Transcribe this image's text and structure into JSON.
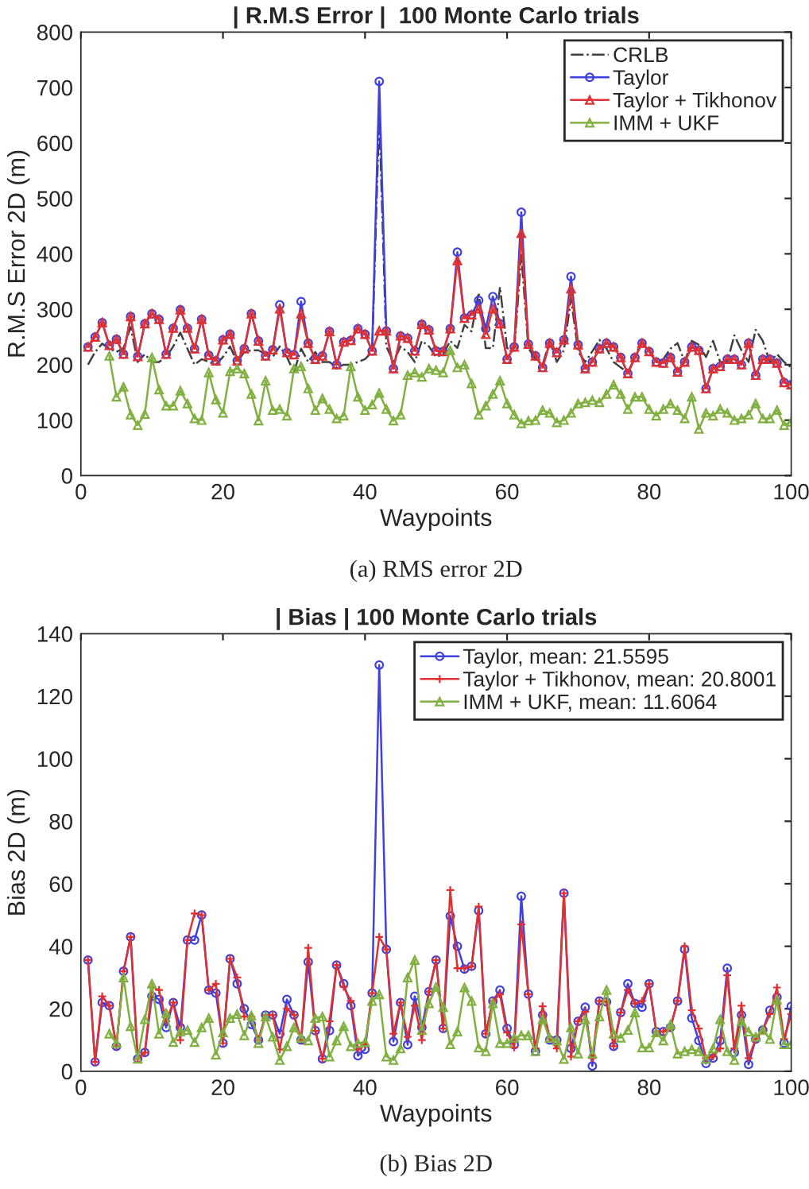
{
  "chart_data": [
    {
      "type": "line",
      "title": "| R.M.S Error |  100 Monte Carlo trials",
      "xlabel": "Waypoints",
      "ylabel": "R.M.S Error 2D (m)",
      "annotations": [
        "(a) RMS error 2D"
      ],
      "x": [
        1,
        2,
        3,
        4,
        5,
        6,
        7,
        8,
        9,
        10,
        11,
        12,
        13,
        14,
        15,
        16,
        17,
        18,
        19,
        20,
        21,
        22,
        23,
        24,
        25,
        26,
        27,
        28,
        29,
        30,
        31,
        32,
        33,
        34,
        35,
        36,
        37,
        38,
        39,
        40,
        41,
        42,
        43,
        44,
        45,
        46,
        47,
        48,
        49,
        50,
        51,
        52,
        53,
        54,
        55,
        56,
        57,
        58,
        59,
        60,
        61,
        62,
        63,
        64,
        65,
        66,
        67,
        68,
        69,
        70,
        71,
        72,
        73,
        74,
        75,
        76,
        77,
        78,
        79,
        80,
        81,
        82,
        83,
        84,
        85,
        86,
        87,
        88,
        89,
        90,
        91,
        92,
        93,
        94,
        95,
        96,
        97,
        98,
        99,
        100
      ],
      "xlim": [
        0,
        100
      ],
      "xticks": [
        0,
        20,
        40,
        60,
        80,
        100
      ],
      "ylim": [
        0,
        800
      ],
      "yticks": [
        0,
        100,
        200,
        300,
        400,
        500,
        600,
        700,
        800
      ],
      "legend": "top right",
      "grid": false,
      "series": [
        {
          "name": "CRLB",
          "color": "#404040",
          "marker": "none",
          "line_style": "dashdot",
          "values": [
            200,
            223,
            238,
            229,
            223,
            230,
            268,
            205,
            219,
            205,
            205,
            214,
            233,
            258,
            229,
            200,
            210,
            205,
            200,
            214,
            233,
            205,
            223,
            226,
            226,
            219,
            214,
            233,
            214,
            186,
            229,
            205,
            223,
            205,
            205,
            195,
            200,
            200,
            205,
            210,
            223,
            650,
            233,
            205,
            233,
            223,
            205,
            243,
            233,
            214,
            219,
            243,
            230,
            272,
            260,
            330,
            230,
            230,
            340,
            230,
            224,
            398,
            230,
            210,
            200,
            243,
            205,
            226,
            320,
            224,
            205,
            224,
            245,
            229,
            205,
            195,
            186,
            213,
            245,
            224,
            205,
            210,
            229,
            239,
            205,
            243,
            236,
            214,
            243,
            205,
            205,
            253,
            226,
            205,
            263,
            243,
            205,
            219,
            205,
            195
          ]
        },
        {
          "name": "Taylor",
          "color": "#4040e0",
          "marker": "circle",
          "line_style": "solid",
          "values": [
            232,
            250,
            276,
            235,
            246,
            219,
            287,
            215,
            274,
            292,
            282,
            219,
            266,
            299,
            266,
            229,
            282,
            217,
            207,
            245,
            255,
            207,
            229,
            292,
            243,
            216,
            227,
            308,
            222,
            218,
            314,
            239,
            210,
            216,
            260,
            200,
            241,
            244,
            265,
            255,
            225,
            711,
            261,
            193,
            252,
            248,
            225,
            273,
            263,
            225,
            224,
            265,
            403,
            284,
            290,
            316,
            265,
            323,
            274,
            210,
            232,
            475,
            237,
            216,
            195,
            239,
            222,
            245,
            359,
            236,
            193,
            205,
            229,
            239,
            232,
            213,
            184,
            213,
            239,
            224,
            205,
            203,
            213,
            187,
            205,
            232,
            226,
            157,
            193,
            197,
            210,
            210,
            200,
            239,
            181,
            210,
            210,
            203,
            168,
            164
          ]
        },
        {
          "name": "Taylor + Tikhonov",
          "color": "#e03030",
          "marker": "triangle",
          "line_style": "solid",
          "values": [
            232,
            250,
            276,
            235,
            246,
            219,
            287,
            215,
            274,
            292,
            282,
            219,
            266,
            299,
            266,
            229,
            282,
            217,
            207,
            245,
            255,
            207,
            229,
            292,
            243,
            216,
            227,
            301,
            222,
            218,
            292,
            239,
            210,
            216,
            260,
            200,
            241,
            244,
            265,
            255,
            225,
            261,
            261,
            193,
            252,
            248,
            225,
            273,
            263,
            225,
            224,
            265,
            388,
            284,
            290,
            301,
            255,
            301,
            274,
            210,
            232,
            437,
            237,
            216,
            195,
            239,
            222,
            245,
            337,
            236,
            193,
            205,
            229,
            239,
            232,
            213,
            184,
            213,
            239,
            224,
            205,
            203,
            213,
            187,
            205,
            232,
            226,
            157,
            193,
            197,
            210,
            210,
            200,
            239,
            181,
            210,
            210,
            203,
            168,
            164
          ]
        },
        {
          "name": "IMM + UKF",
          "color": "#80b040",
          "marker": "triangle",
          "line_style": "solid",
          "values": [
            null,
            null,
            null,
            216,
            142,
            160,
            110,
            91,
            111,
            213,
            155,
            126,
            126,
            153,
            130,
            103,
            100,
            186,
            137,
            113,
            188,
            193,
            184,
            147,
            99,
            171,
            118,
            120,
            108,
            193,
            197,
            157,
            118,
            139,
            120,
            103,
            108,
            197,
            142,
            118,
            128,
            149,
            120,
            99,
            110,
            181,
            186,
            178,
            193,
            190,
            186,
            226,
            195,
            200,
            166,
            110,
            126,
            147,
            171,
            130,
            110,
            94,
            99,
            100,
            118,
            113,
            96,
            100,
            113,
            130,
            132,
            136,
            132,
            147,
            164,
            147,
            120,
            142,
            142,
            120,
            108,
            120,
            130,
            118,
            103,
            142,
            84,
            113,
            108,
            120,
            113,
            100,
            103,
            110,
            130,
            103,
            103,
            118,
            91,
            97
          ]
        }
      ]
    },
    {
      "type": "line",
      "title": "| Bias | 100 Monte Carlo trials",
      "xlabel": "Waypoints",
      "ylabel": "Bias 2D (m)",
      "annotations": [
        "(b) Bias 2D"
      ],
      "x": [
        1,
        2,
        3,
        4,
        5,
        6,
        7,
        8,
        9,
        10,
        11,
        12,
        13,
        14,
        15,
        16,
        17,
        18,
        19,
        20,
        21,
        22,
        23,
        24,
        25,
        26,
        27,
        28,
        29,
        30,
        31,
        32,
        33,
        34,
        35,
        36,
        37,
        38,
        39,
        40,
        41,
        42,
        43,
        44,
        45,
        46,
        47,
        48,
        49,
        50,
        51,
        52,
        53,
        54,
        55,
        56,
        57,
        58,
        59,
        60,
        61,
        62,
        63,
        64,
        65,
        66,
        67,
        68,
        69,
        70,
        71,
        72,
        73,
        74,
        75,
        76,
        77,
        78,
        79,
        80,
        81,
        82,
        83,
        84,
        85,
        86,
        87,
        88,
        89,
        90,
        91,
        92,
        93,
        94,
        95,
        96,
        97,
        98,
        99,
        100
      ],
      "xlim": [
        0,
        100
      ],
      "xticks": [
        0,
        20,
        40,
        60,
        80,
        100
      ],
      "ylim": [
        0,
        140
      ],
      "yticks": [
        0,
        20,
        40,
        60,
        80,
        100,
        120,
        140
      ],
      "legend": "top right",
      "grid": false,
      "series": [
        {
          "name": "Taylor, mean: 21.5595",
          "color": "#4040e0",
          "marker": "circle",
          "line_style": "solid",
          "values": [
            35.6,
            3,
            22,
            21,
            8,
            32,
            43,
            4,
            6,
            24,
            23,
            14,
            22,
            14,
            42,
            42,
            50,
            26,
            25,
            9,
            36,
            28,
            20,
            15,
            10,
            18,
            18,
            12,
            23,
            18,
            10,
            35,
            13,
            4,
            13,
            34,
            28,
            21,
            5,
            7,
            25,
            130,
            39,
            9.5,
            22,
            8.5,
            24,
            14,
            25.5,
            35.6,
            13.7,
            49.7,
            40,
            32.7,
            33.6,
            51.4,
            12,
            22.5,
            26,
            13.7,
            8.5,
            56,
            24.7,
            6.4,
            18,
            10,
            10,
            57,
            7.3,
            16,
            20.5,
            1.7,
            22.5,
            22.2,
            8,
            18.8,
            28,
            21.7,
            20.5,
            28,
            12.7,
            12.7,
            14,
            22.5,
            39,
            17,
            9.8,
            2.5,
            4.2,
            9.8,
            33,
            6,
            18,
            2.2,
            10.3,
            13.2,
            19.5,
            23.7,
            9,
            20.8
          ]
        },
        {
          "name": "Taylor + Tikhonov, mean: 20.8001",
          "color": "#e03030",
          "marker": "cross",
          "line_style": "solid",
          "values": [
            35.6,
            3,
            24,
            21,
            8,
            32,
            43,
            4,
            6,
            27,
            26,
            16,
            22,
            10,
            42,
            50.5,
            50,
            26,
            28,
            9,
            36,
            30,
            17.5,
            17.5,
            10,
            18,
            18,
            7,
            20,
            18,
            10,
            39.5,
            13,
            4,
            16,
            34,
            27,
            22.5,
            7,
            8.5,
            25,
            43,
            39,
            12,
            22,
            11,
            21,
            10,
            25.5,
            35.6,
            13.7,
            58,
            33,
            33,
            33.6,
            52.7,
            12,
            22.5,
            24.6,
            12.4,
            7.6,
            47,
            24.7,
            7.3,
            20.8,
            10.7,
            7.3,
            57,
            4.7,
            16,
            19,
            4.2,
            22.5,
            22.2,
            8,
            18.8,
            26,
            21.7,
            22.5,
            28,
            12.7,
            12.7,
            14,
            22.5,
            40,
            19.5,
            13.7,
            4.2,
            4.7,
            7.3,
            30.7,
            7.3,
            21,
            4.2,
            10.3,
            13.2,
            18.3,
            26.8,
            10.3,
            18.3
          ]
        },
        {
          "name": "IMM + UKF, mean: 11.6064",
          "color": "#80b040",
          "marker": "triangle",
          "line_style": "solid",
          "values": [
            null,
            null,
            null,
            12,
            9,
            30,
            14.4,
            4,
            16.6,
            28,
            12,
            18.6,
            9.3,
            12.7,
            13.2,
            9.3,
            14,
            17,
            5.3,
            12.4,
            17,
            18.3,
            11.5,
            17.8,
            9,
            17.5,
            11,
            3.6,
            8,
            14,
            10.7,
            9.8,
            17,
            17.5,
            4.7,
            9.8,
            14.4,
            8,
            9,
            9.3,
            22.5,
            24.6,
            4.7,
            3.6,
            7.3,
            30,
            35.6,
            13.2,
            21.7,
            27,
            20.5,
            8.6,
            12.7,
            26.8,
            22.5,
            7.6,
            6.4,
            21.7,
            9,
            9,
            10.7,
            11.5,
            11.5,
            6.4,
            16.6,
            10.7,
            9.8,
            3.9,
            14,
            5.6,
            16.6,
            5.6,
            17.5,
            26,
            12,
            10.7,
            13.2,
            18.8,
            7.6,
            7.6,
            12.4,
            9.8,
            15,
            5.6,
            6.4,
            7,
            6.4,
            3.9,
            7.3,
            16.6,
            6.4,
            3.6,
            16,
            12.7,
            11,
            13.2,
            10.3,
            22.9,
            8.6,
            8.6
          ]
        }
      ]
    }
  ]
}
